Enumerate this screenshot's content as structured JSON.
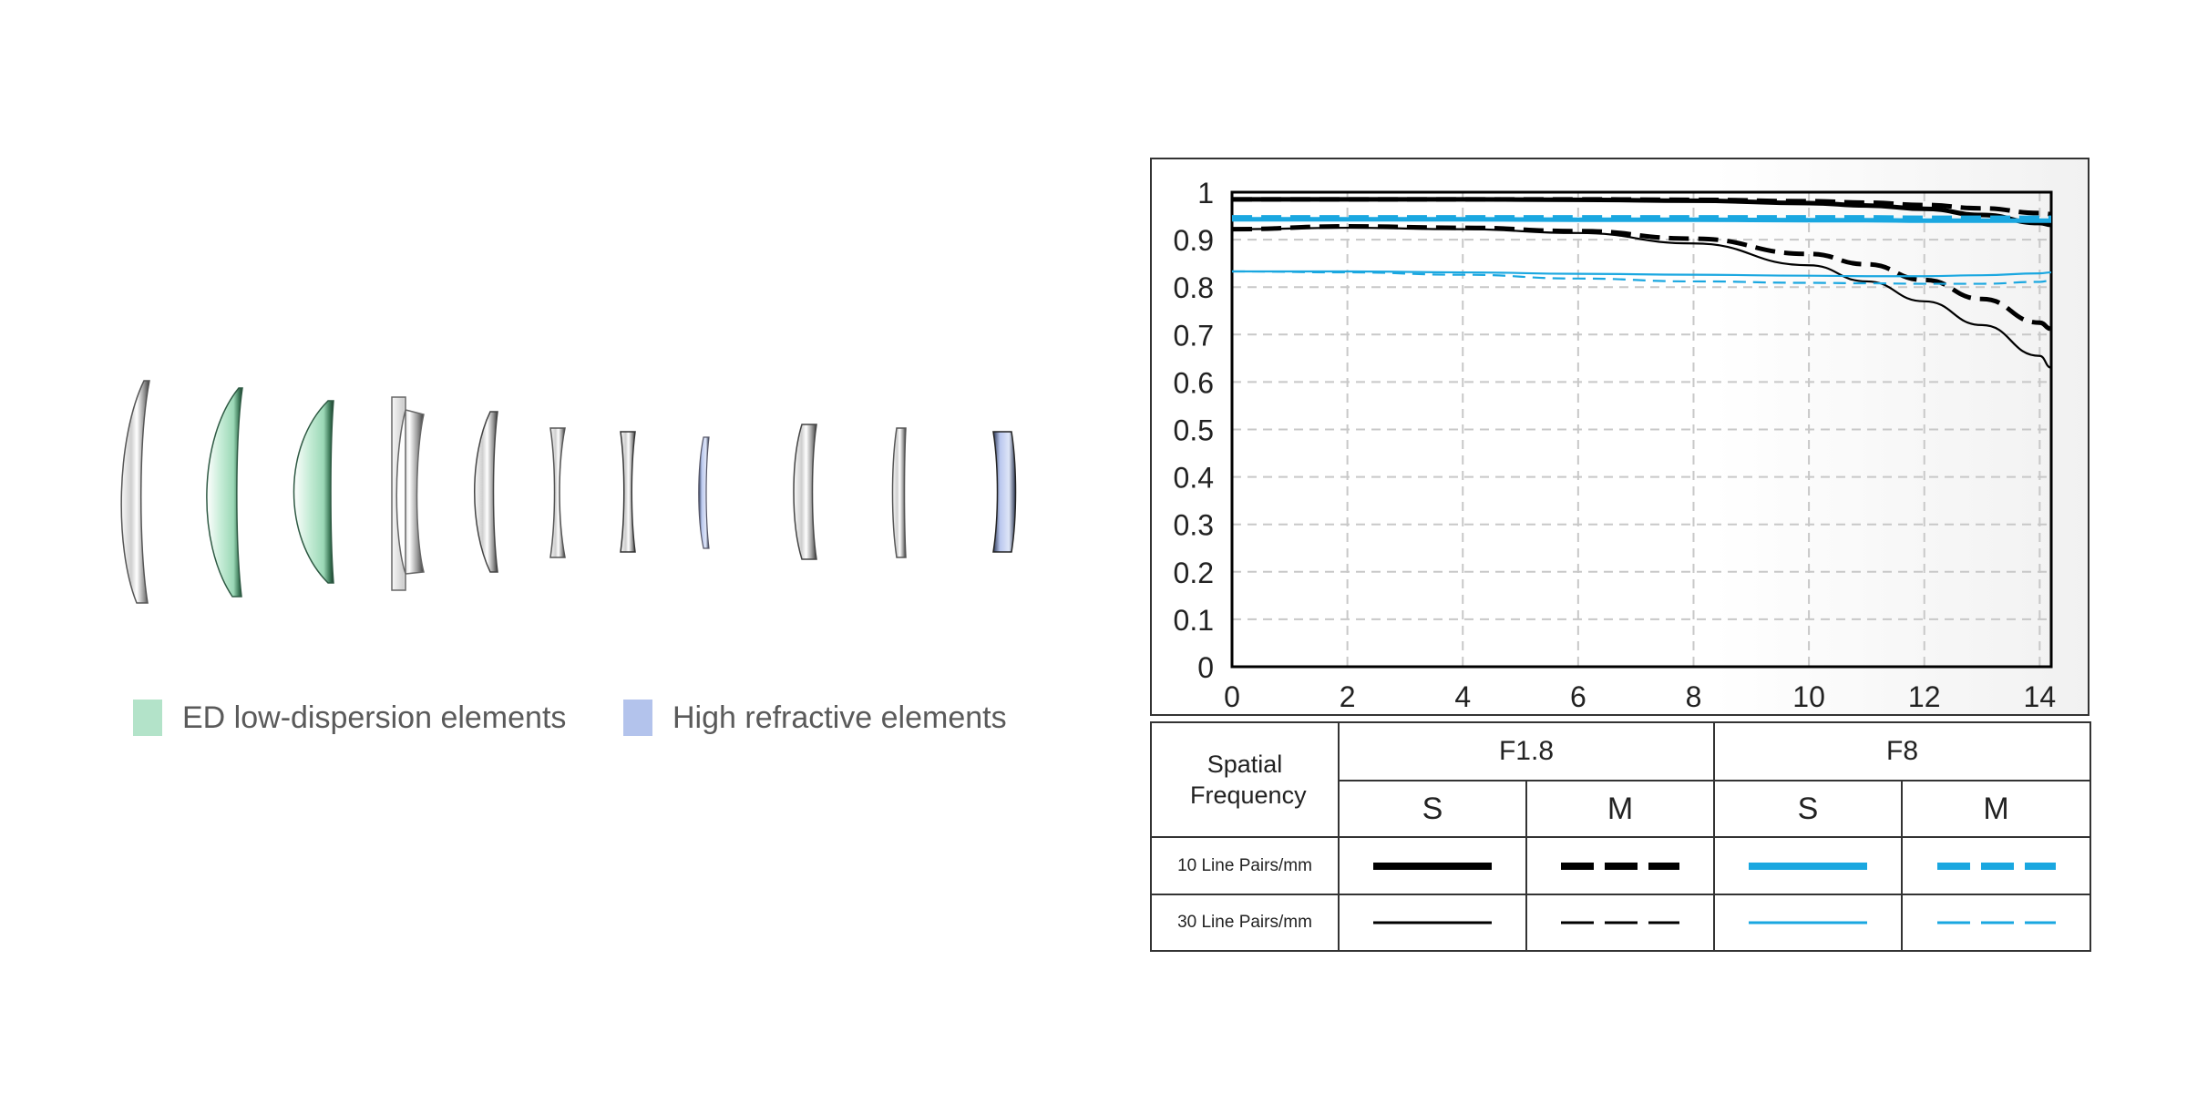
{
  "lens_diagram": {
    "legend": [
      {
        "label": "ED low-dispersion elements",
        "color": "#b3e3c9"
      },
      {
        "label": "High refractive elements",
        "color": "#b3c3ec"
      }
    ]
  },
  "table": {
    "row_header": "Spatial Frequency",
    "apertures": [
      "F1.8",
      "F8"
    ],
    "sub_columns": [
      "S",
      "M",
      "S",
      "M"
    ],
    "rows": [
      "10 Line Pairs/mm",
      "30 Line Pairs/mm"
    ]
  },
  "colors": {
    "black": "#000000",
    "blue": "#1aa7e0"
  },
  "chart_data": {
    "type": "line",
    "title": "",
    "xlabel": "",
    "ylabel": "",
    "xlim": [
      0,
      14.2
    ],
    "ylim": [
      0,
      1
    ],
    "x_ticks": [
      "0",
      "2",
      "4",
      "6",
      "8",
      "10",
      "12",
      "14"
    ],
    "y_ticks": [
      "0",
      "0.1",
      "0.2",
      "0.3",
      "0.4",
      "0.5",
      "0.6",
      "0.7",
      "0.8",
      "0.9",
      "1"
    ],
    "grid": true,
    "x": [
      0,
      2,
      4,
      6,
      8,
      10,
      11,
      12,
      13,
      14,
      14.2
    ],
    "series": [
      {
        "aperture": "F1.8",
        "orientation": "S",
        "frequency": "10 Line Pairs/mm",
        "color": "#000000",
        "dashed": false,
        "width": "thick",
        "values": [
          0.985,
          0.985,
          0.985,
          0.984,
          0.982,
          0.977,
          0.972,
          0.965,
          0.952,
          0.935,
          0.931
        ]
      },
      {
        "aperture": "F1.8",
        "orientation": "M",
        "frequency": "10 Line Pairs/mm",
        "color": "#000000",
        "dashed": true,
        "width": "thick",
        "values": [
          0.985,
          0.985,
          0.985,
          0.985,
          0.984,
          0.981,
          0.978,
          0.973,
          0.966,
          0.956,
          0.954
        ]
      },
      {
        "aperture": "F1.8",
        "orientation": "S",
        "frequency": "30 Line Pairs/mm",
        "color": "#000000",
        "dashed": false,
        "width": "thin",
        "values": [
          0.922,
          0.925,
          0.922,
          0.914,
          0.892,
          0.846,
          0.812,
          0.77,
          0.72,
          0.655,
          0.63
        ]
      },
      {
        "aperture": "F1.8",
        "orientation": "M",
        "frequency": "30 Line Pairs/mm",
        "color": "#000000",
        "dashed": true,
        "width": "thick",
        "values": [
          0.922,
          0.928,
          0.925,
          0.918,
          0.902,
          0.87,
          0.848,
          0.815,
          0.775,
          0.725,
          0.712
        ]
      },
      {
        "aperture": "F8",
        "orientation": "S",
        "frequency": "10 Line Pairs/mm",
        "color": "#1aa7e0",
        "dashed": false,
        "width": "thick",
        "values": [
          0.943,
          0.943,
          0.943,
          0.942,
          0.942,
          0.941,
          0.941,
          0.94,
          0.94,
          0.94,
          0.94
        ]
      },
      {
        "aperture": "F8",
        "orientation": "M",
        "frequency": "10 Line Pairs/mm",
        "color": "#1aa7e0",
        "dashed": true,
        "width": "thick",
        "values": [
          0.947,
          0.947,
          0.947,
          0.947,
          0.947,
          0.947,
          0.947,
          0.946,
          0.946,
          0.946,
          0.946
        ]
      },
      {
        "aperture": "F8",
        "orientation": "S",
        "frequency": "30 Line Pairs/mm",
        "color": "#1aa7e0",
        "dashed": false,
        "width": "thin",
        "values": [
          0.833,
          0.833,
          0.831,
          0.828,
          0.826,
          0.824,
          0.823,
          0.823,
          0.825,
          0.829,
          0.831
        ]
      },
      {
        "aperture": "F8",
        "orientation": "M",
        "frequency": "30 Line Pairs/mm",
        "color": "#1aa7e0",
        "dashed": true,
        "width": "thin",
        "values": [
          0.833,
          0.831,
          0.826,
          0.818,
          0.812,
          0.809,
          0.808,
          0.807,
          0.807,
          0.811,
          0.814
        ]
      }
    ]
  }
}
